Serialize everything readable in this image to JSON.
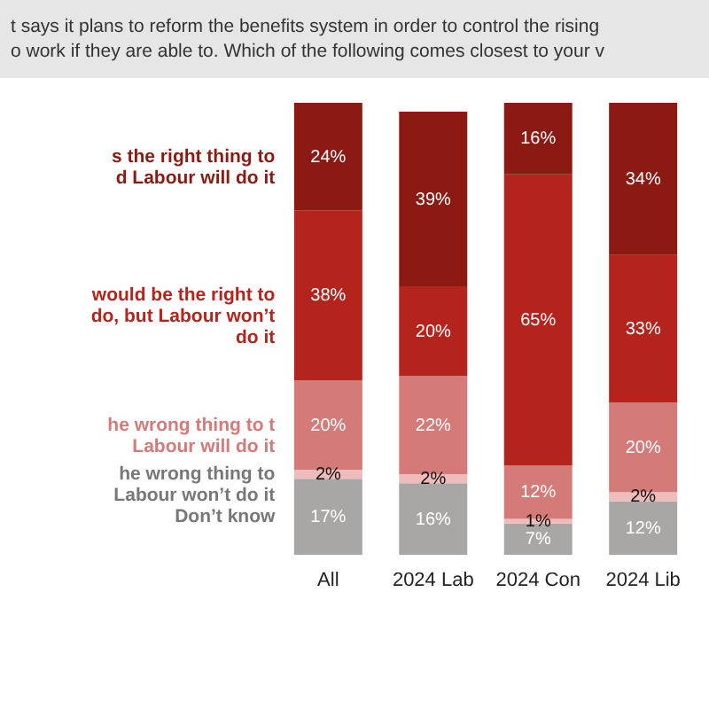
{
  "chart_data": {
    "type": "bar",
    "stacked": true,
    "title": "t says it plans to reform the benefits system in order to control the rising",
    "subtitle": "o work if they are able to. Which of the following comes closest to your v",
    "categories": [
      "All",
      "2024 Lab",
      "2024 Con",
      "2024 Lib"
    ],
    "series": [
      {
        "name": "Don’t know",
        "color": "#a9a6a6",
        "values": [
          17,
          16,
          7,
          12
        ],
        "value_labels": [
          "17%",
          "16%",
          "7%",
          "12%"
        ]
      },
      {
        "name": "he wrong thing to Labour won’t do it",
        "color": "#eebcbb",
        "values": [
          2,
          2,
          1,
          2
        ],
        "value_labels": [
          "2%",
          "2%",
          "1%",
          "2%"
        ]
      },
      {
        "name": "he wrong thing to t Labour will do it",
        "color": "#d47a78",
        "values": [
          20,
          22,
          12,
          20
        ],
        "value_labels": [
          "20%",
          "22%",
          "12%",
          "20%"
        ]
      },
      {
        "name": "would be the right to do, but Labour won’t do it",
        "color": "#b5241c",
        "values": [
          38,
          20,
          65,
          33
        ],
        "value_labels": [
          "38%",
          "20%",
          "65%",
          "33%"
        ]
      },
      {
        "name": "s the right thing to d Labour will do it",
        "color": "#8b1a12",
        "values": [
          24,
          39,
          16,
          34
        ],
        "value_labels": [
          "24%",
          "39%",
          "16%",
          "34%"
        ]
      }
    ]
  }
}
